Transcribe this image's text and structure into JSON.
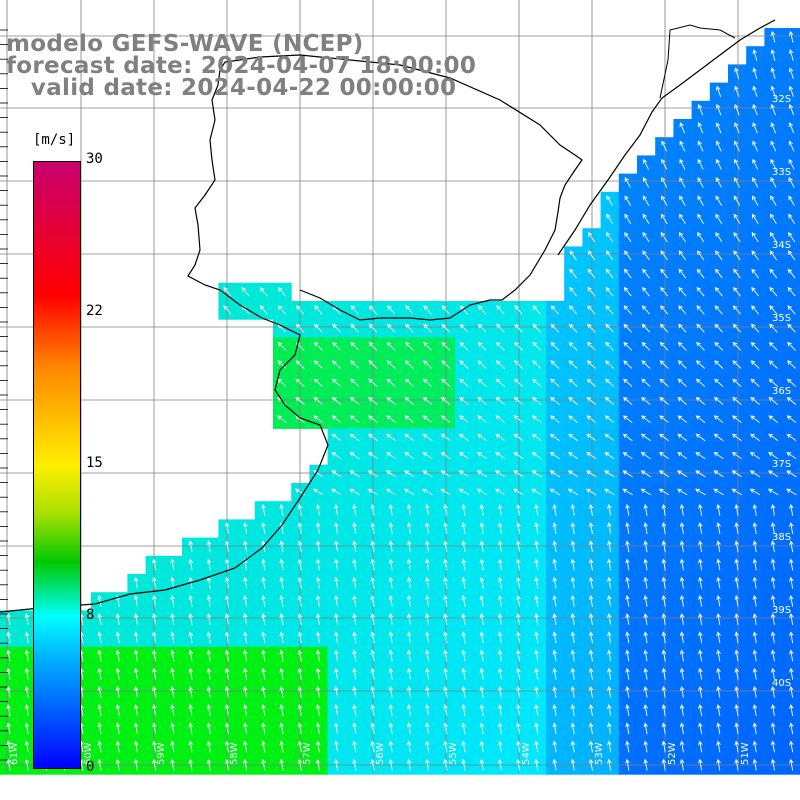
{
  "title": {
    "line1": "modelo GEFS-WAVE (NCEP)",
    "line2": "forecast date: 2024-04-07 18:00:00",
    "line3": "   valid date: 2024-04-22 00:00:00"
  },
  "colorbar": {
    "units": "[m/s]",
    "labels": [
      "30",
      "22",
      "15",
      "8",
      "0"
    ],
    "colors": [
      "#c8006e",
      "#ff0000",
      "#ff8800",
      "#ffee00",
      "#00c800",
      "#00ffff",
      "#00b0ff",
      "#0050ff",
      "#0000ff"
    ]
  },
  "map": {
    "land_color": "#ffffff",
    "coastline_color": "#000000",
    "grid_color": "#808080",
    "arrow_color": "#ffffff",
    "lat_labels": [
      "32S",
      "33S",
      "34S",
      "35S",
      "36S",
      "37S",
      "38S",
      "39S",
      "40S"
    ],
    "lon_labels": [
      "61W",
      "60W",
      "59W",
      "58W",
      "57W",
      "56W",
      "55W",
      "54W",
      "53W",
      "52W",
      "51W"
    ]
  }
}
